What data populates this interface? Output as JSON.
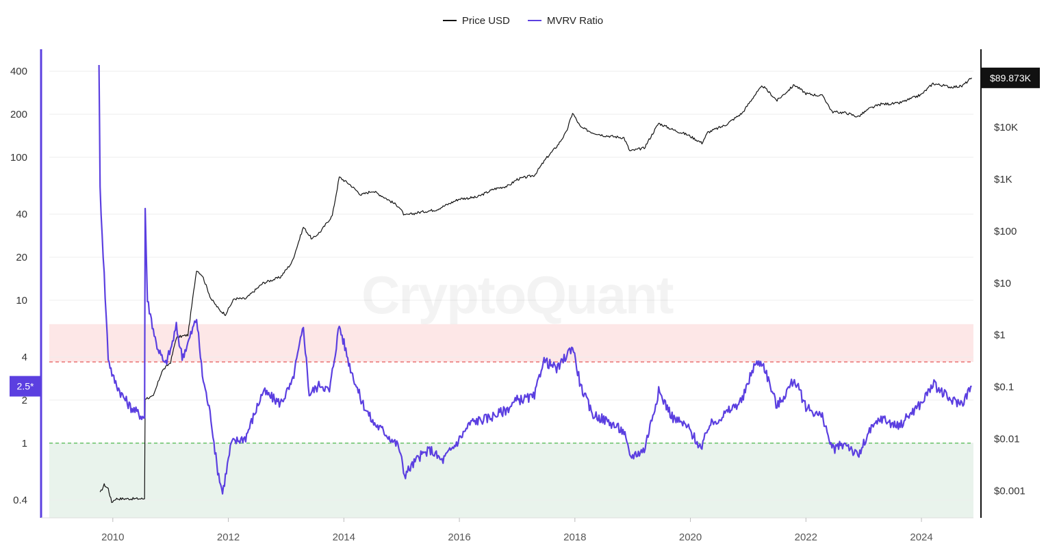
{
  "legend": {
    "items": [
      {
        "label": "Price USD",
        "color": "#111111"
      },
      {
        "label": "MVRV Ratio",
        "color": "#5b3fe0"
      }
    ]
  },
  "watermark": "CryptoQuant",
  "colors": {
    "price": "#111111",
    "mvrv": "#5b3fe0",
    "high_zone": "#fde7e7",
    "low_zone": "#e9f3ec",
    "high_line": "#e96666",
    "low_line": "#66c266",
    "grid": "#eeeeee"
  },
  "chart_data": {
    "type": "line",
    "x_range": [
      2008.9,
      2024.9
    ],
    "x_ticks": [
      "2010",
      "2012",
      "2014",
      "2016",
      "2018",
      "2020",
      "2022",
      "2024"
    ],
    "y_left": {
      "scale": "log",
      "range": [
        0.3,
        570
      ],
      "ticks": [
        {
          "value": 400,
          "label": "400"
        },
        {
          "value": 200,
          "label": "200"
        },
        {
          "value": 100,
          "label": "100"
        },
        {
          "value": 40,
          "label": "40"
        },
        {
          "value": 20,
          "label": "20"
        },
        {
          "value": 10,
          "label": "10"
        },
        {
          "value": 4,
          "label": "4"
        },
        {
          "value": 2,
          "label": "2"
        },
        {
          "value": 1,
          "label": "1"
        },
        {
          "value": 0.4,
          "label": "0.4"
        }
      ],
      "current_label": "2.5*",
      "current_value": 2.5
    },
    "y_right": {
      "scale": "log",
      "range": [
        0.0003,
        320000
      ],
      "ticks": [
        {
          "value": 10000,
          "label": "$10K"
        },
        {
          "value": 1000,
          "label": "$1K"
        },
        {
          "value": 100,
          "label": "$100"
        },
        {
          "value": 10,
          "label": "$10"
        },
        {
          "value": 1,
          "label": "$1"
        },
        {
          "value": 0.1,
          "label": "$0.1"
        },
        {
          "value": 0.01,
          "label": "$0.01"
        },
        {
          "value": 0.001,
          "label": "$0.001"
        }
      ],
      "current_label": "$89.873K",
      "current_value": 89873
    },
    "bands": [
      {
        "from": 3.7,
        "to": 6.8,
        "color": "#fde7e7"
      },
      {
        "from": 0.3,
        "to": 1.0,
        "color": "#e9f3ec"
      }
    ],
    "reference_lines": [
      {
        "value": 3.7,
        "color": "#e96666"
      },
      {
        "value": 1.0,
        "color": "#66c266"
      }
    ],
    "series": [
      {
        "name": "Price USD",
        "axis": "right",
        "points": [
          [
            2009.78,
            0.0009
          ],
          [
            2009.85,
            0.0013
          ],
          [
            2009.92,
            0.0011
          ],
          [
            2009.98,
            0.0006
          ],
          [
            2010.05,
            0.0007
          ],
          [
            2010.55,
            0.0007
          ],
          [
            2010.56,
            0.06
          ],
          [
            2010.7,
            0.065
          ],
          [
            2010.85,
            0.2
          ],
          [
            2011.0,
            0.3
          ],
          [
            2011.1,
            0.9
          ],
          [
            2011.3,
            1.0
          ],
          [
            2011.45,
            18
          ],
          [
            2011.55,
            14
          ],
          [
            2011.7,
            5
          ],
          [
            2011.85,
            3
          ],
          [
            2011.95,
            2.5
          ],
          [
            2012.1,
            5
          ],
          [
            2012.3,
            5
          ],
          [
            2012.6,
            10
          ],
          [
            2012.9,
            13
          ],
          [
            2013.1,
            25
          ],
          [
            2013.3,
            120
          ],
          [
            2013.45,
            70
          ],
          [
            2013.6,
            100
          ],
          [
            2013.8,
            200
          ],
          [
            2013.92,
            1100
          ],
          [
            2014.1,
            800
          ],
          [
            2014.3,
            500
          ],
          [
            2014.5,
            600
          ],
          [
            2014.7,
            450
          ],
          [
            2014.95,
            300
          ],
          [
            2015.05,
            200
          ],
          [
            2015.3,
            230
          ],
          [
            2015.6,
            260
          ],
          [
            2015.85,
            350
          ],
          [
            2016.0,
            420
          ],
          [
            2016.3,
            450
          ],
          [
            2016.6,
            650
          ],
          [
            2016.85,
            750
          ],
          [
            2017.0,
            1000
          ],
          [
            2017.3,
            1200
          ],
          [
            2017.5,
            2500
          ],
          [
            2017.7,
            4500
          ],
          [
            2017.85,
            8000
          ],
          [
            2017.96,
            19000
          ],
          [
            2018.1,
            10000
          ],
          [
            2018.3,
            8000
          ],
          [
            2018.5,
            7000
          ],
          [
            2018.85,
            6300
          ],
          [
            2018.95,
            3500
          ],
          [
            2019.2,
            4000
          ],
          [
            2019.45,
            12000
          ],
          [
            2019.7,
            9000
          ],
          [
            2019.95,
            7200
          ],
          [
            2020.2,
            5000
          ],
          [
            2020.3,
            8000
          ],
          [
            2020.6,
            11000
          ],
          [
            2020.9,
            19000
          ],
          [
            2021.1,
            40000
          ],
          [
            2021.25,
            63000
          ],
          [
            2021.5,
            33000
          ],
          [
            2021.8,
            66000
          ],
          [
            2022.0,
            45000
          ],
          [
            2022.3,
            40000
          ],
          [
            2022.45,
            20000
          ],
          [
            2022.7,
            19000
          ],
          [
            2022.9,
            16000
          ],
          [
            2023.1,
            23000
          ],
          [
            2023.3,
            28000
          ],
          [
            2023.6,
            29000
          ],
          [
            2023.8,
            35000
          ],
          [
            2024.0,
            43000
          ],
          [
            2024.2,
            70000
          ],
          [
            2024.5,
            60000
          ],
          [
            2024.7,
            62000
          ],
          [
            2024.87,
            89873
          ]
        ]
      },
      {
        "name": "MVRV Ratio",
        "axis": "left",
        "points": [
          [
            2009.76,
            470
          ],
          [
            2009.78,
            60
          ],
          [
            2009.85,
            15
          ],
          [
            2009.92,
            4
          ],
          [
            2010.0,
            2.9
          ],
          [
            2010.15,
            2.2
          ],
          [
            2010.3,
            1.8
          ],
          [
            2010.45,
            1.6
          ],
          [
            2010.55,
            1.5
          ],
          [
            2010.56,
            44
          ],
          [
            2010.6,
            10
          ],
          [
            2010.75,
            5
          ],
          [
            2010.9,
            3.5
          ],
          [
            2011.0,
            4.5
          ],
          [
            2011.1,
            6.5
          ],
          [
            2011.2,
            4
          ],
          [
            2011.3,
            5
          ],
          [
            2011.45,
            7.5
          ],
          [
            2011.55,
            3
          ],
          [
            2011.7,
            1.5
          ],
          [
            2011.8,
            0.7
          ],
          [
            2011.9,
            0.45
          ],
          [
            2012.05,
            1.0
          ],
          [
            2012.3,
            1.1
          ],
          [
            2012.6,
            2.3
          ],
          [
            2012.9,
            1.9
          ],
          [
            2013.1,
            2.6
          ],
          [
            2013.3,
            6.5
          ],
          [
            2013.4,
            2.2
          ],
          [
            2013.6,
            2.6
          ],
          [
            2013.75,
            2.3
          ],
          [
            2013.92,
            6.7
          ],
          [
            2014.1,
            3.5
          ],
          [
            2014.3,
            2.0
          ],
          [
            2014.5,
            1.4
          ],
          [
            2014.7,
            1.2
          ],
          [
            2014.95,
            0.95
          ],
          [
            2015.05,
            0.6
          ],
          [
            2015.3,
            0.8
          ],
          [
            2015.5,
            0.9
          ],
          [
            2015.7,
            0.75
          ],
          [
            2015.95,
            1.0
          ],
          [
            2016.2,
            1.4
          ],
          [
            2016.5,
            1.5
          ],
          [
            2016.8,
            1.7
          ],
          [
            2017.0,
            2.0
          ],
          [
            2017.3,
            2.1
          ],
          [
            2017.45,
            3.8
          ],
          [
            2017.7,
            3.3
          ],
          [
            2017.96,
            4.8
          ],
          [
            2018.1,
            2.5
          ],
          [
            2018.3,
            1.6
          ],
          [
            2018.6,
            1.4
          ],
          [
            2018.85,
            1.2
          ],
          [
            2018.95,
            0.8
          ],
          [
            2019.2,
            0.9
          ],
          [
            2019.45,
            2.3
          ],
          [
            2019.7,
            1.5
          ],
          [
            2019.95,
            1.3
          ],
          [
            2020.2,
            0.9
          ],
          [
            2020.3,
            1.3
          ],
          [
            2020.6,
            1.6
          ],
          [
            2020.9,
            2.0
          ],
          [
            2021.1,
            3.5
          ],
          [
            2021.25,
            3.7
          ],
          [
            2021.5,
            1.8
          ],
          [
            2021.8,
            2.8
          ],
          [
            2022.0,
            1.8
          ],
          [
            2022.3,
            1.5
          ],
          [
            2022.45,
            0.9
          ],
          [
            2022.7,
            1.0
          ],
          [
            2022.9,
            0.8
          ],
          [
            2023.1,
            1.2
          ],
          [
            2023.3,
            1.5
          ],
          [
            2023.6,
            1.3
          ],
          [
            2023.8,
            1.6
          ],
          [
            2024.0,
            1.9
          ],
          [
            2024.2,
            2.6
          ],
          [
            2024.5,
            2.0
          ],
          [
            2024.7,
            1.9
          ],
          [
            2024.87,
            2.5
          ]
        ]
      }
    ]
  }
}
